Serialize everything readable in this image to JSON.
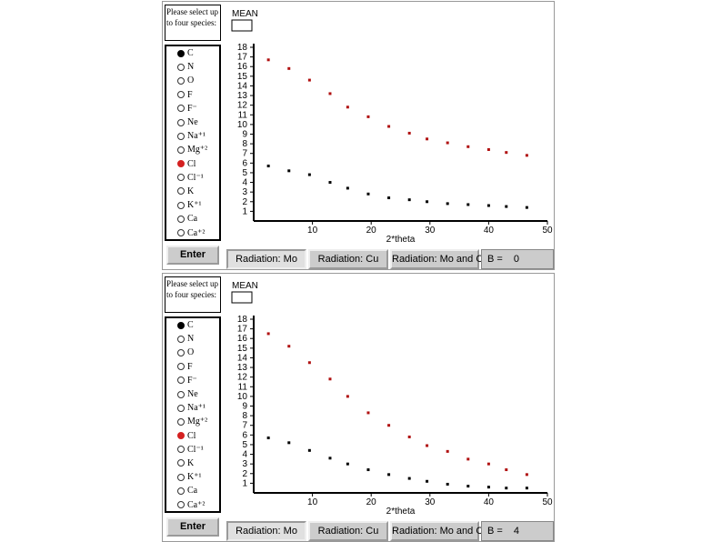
{
  "panels": [
    {
      "sidebar": {
        "prompt": "Please select up to four species:",
        "species": [
          {
            "label": "C",
            "selected": true,
            "color": "#000000"
          },
          {
            "label": "N"
          },
          {
            "label": "O"
          },
          {
            "label": "F"
          },
          {
            "label": "F⁻"
          },
          {
            "label": "Ne"
          },
          {
            "label": "Na⁺¹"
          },
          {
            "label": "Mg⁺²"
          },
          {
            "label": "Cl",
            "selected": true,
            "color": "#d42020"
          },
          {
            "label": "Cl⁻¹"
          },
          {
            "label": "K"
          },
          {
            "label": "K⁺¹"
          },
          {
            "label": "Ca"
          },
          {
            "label": "Ca⁺²"
          }
        ],
        "enter": "Enter"
      },
      "chart": {
        "type": "scatter",
        "y_label": "MEAN",
        "x_label": "2*theta",
        "xlim": [
          0,
          50
        ],
        "ylim": [
          0,
          18
        ],
        "xticks": [
          10,
          20,
          30,
          40,
          50
        ],
        "yticks": [
          1,
          2,
          3,
          4,
          5,
          6,
          7,
          8,
          9,
          10,
          11,
          12,
          13,
          14,
          15,
          16,
          17,
          18
        ],
        "series": [
          {
            "color": "#b01010",
            "x": [
              2.5,
              6,
              9.5,
              13,
              16,
              19.5,
              23,
              26.5,
              29.5,
              33,
              36.5,
              40,
              43,
              46.5
            ],
            "values": [
              16.7,
              15.8,
              14.6,
              13.2,
              11.8,
              10.8,
              9.8,
              9.1,
              8.5,
              8.1,
              7.7,
              7.4,
              7.1,
              6.8
            ]
          },
          {
            "color": "#000000",
            "x": [
              2.5,
              6,
              9.5,
              13,
              16,
              19.5,
              23,
              26.5,
              29.5,
              33,
              36.5,
              40,
              43,
              46.5
            ],
            "values": [
              5.7,
              5.2,
              4.8,
              4.0,
              3.4,
              2.8,
              2.4,
              2.2,
              2.0,
              1.8,
              1.7,
              1.6,
              1.5,
              1.4
            ]
          }
        ]
      },
      "buttons": [
        "Radiation: Mo",
        "Radiation: Cu",
        "Radiation: Mo and Cu"
      ],
      "pressed_button": 0,
      "spinner": {
        "label": "B =",
        "value": 0
      }
    },
    {
      "sidebar": {
        "prompt": "Please select up to four species:",
        "species": [
          {
            "label": "C",
            "selected": true,
            "color": "#000000"
          },
          {
            "label": "N"
          },
          {
            "label": "O"
          },
          {
            "label": "F"
          },
          {
            "label": "F⁻"
          },
          {
            "label": "Ne"
          },
          {
            "label": "Na⁺¹"
          },
          {
            "label": "Mg⁺²"
          },
          {
            "label": "Cl",
            "selected": true,
            "color": "#d42020"
          },
          {
            "label": "Cl⁻¹"
          },
          {
            "label": "K"
          },
          {
            "label": "K⁺¹"
          },
          {
            "label": "Ca"
          },
          {
            "label": "Ca⁺²"
          }
        ],
        "enter": "Enter"
      },
      "chart": {
        "type": "scatter",
        "y_label": "MEAN",
        "x_label": "2*theta",
        "xlim": [
          0,
          50
        ],
        "ylim": [
          0,
          18
        ],
        "xticks": [
          10,
          20,
          30,
          40,
          50
        ],
        "yticks": [
          1,
          2,
          3,
          4,
          5,
          6,
          7,
          8,
          9,
          10,
          11,
          12,
          13,
          14,
          15,
          16,
          17,
          18
        ],
        "series": [
          {
            "color": "#b01010",
            "x": [
              2.5,
              6,
              9.5,
              13,
              16,
              19.5,
              23,
              26.5,
              29.5,
              33,
              36.5,
              40,
              43,
              46.5
            ],
            "values": [
              16.5,
              15.2,
              13.5,
              11.8,
              10.0,
              8.3,
              7.0,
              5.8,
              4.9,
              4.3,
              3.5,
              3.0,
              2.4,
              1.9
            ]
          },
          {
            "color": "#000000",
            "x": [
              2.5,
              6,
              9.5,
              13,
              16,
              19.5,
              23,
              26.5,
              29.5,
              33,
              36.5,
              40,
              43,
              46.5
            ],
            "values": [
              5.7,
              5.2,
              4.4,
              3.6,
              3.0,
              2.4,
              1.9,
              1.5,
              1.2,
              0.9,
              0.7,
              0.6,
              0.5,
              0.5
            ]
          }
        ]
      },
      "buttons": [
        "Radiation: Mo",
        "Radiation: Cu",
        "Radiation: Mo and Cu"
      ],
      "pressed_button": 0,
      "spinner": {
        "label": "B =",
        "value": 4
      }
    }
  ]
}
